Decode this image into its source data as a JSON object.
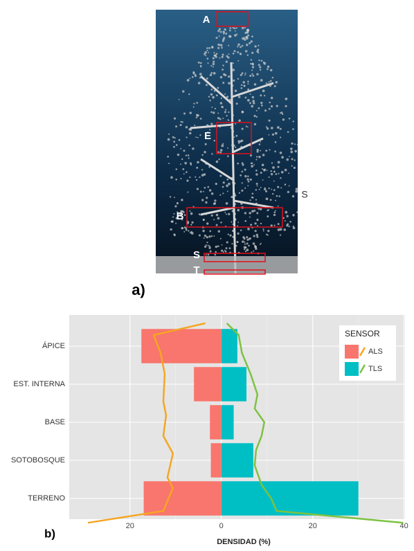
{
  "figure_a": {
    "labels": [
      "A",
      "E",
      "B",
      "S",
      "T"
    ],
    "side_mark": "S",
    "panel_label": "a)"
  },
  "chart_data": {
    "type": "bar",
    "panel_label": "b)",
    "xlabel": "DENSIDAD (%)",
    "categories": [
      "ÁPICE",
      "EST. INTERNA",
      "BASE",
      "SOTOBOSQUE",
      "TERRENO"
    ],
    "series": [
      {
        "name": "ALS",
        "color": "#f8766d",
        "line_color": "#f5a623",
        "values": [
          -17.5,
          -6,
          -2.5,
          -2.3,
          -17
        ],
        "profile": {
          "x": [
            -3.5,
            -14.8,
            -13.3,
            -12.4,
            -12.7,
            -12.1,
            -12.7,
            -10.6,
            -11.8,
            -10.6,
            -12.7,
            -29.2
          ],
          "y": [
            -0.6,
            -0.29,
            0.18,
            0.73,
            1.45,
            1.82,
            2.36,
            2.82,
            3.45,
            3.73,
            4.33,
            4.64
          ]
        }
      },
      {
        "name": "TLS",
        "color": "#00bfc4",
        "line_color": "#7dc242",
        "values": [
          3.5,
          5.5,
          2.7,
          7,
          30
        ],
        "profile": {
          "x": [
            1.2,
            3.8,
            4.5,
            6.4,
            7.9,
            7.3,
            9.4,
            8.8,
            7.6,
            7.3,
            8.8,
            10.9,
            12.1,
            39.8
          ],
          "y": [
            -0.6,
            -0.29,
            0.18,
            0.73,
            1.27,
            1.64,
            2.0,
            2.36,
            2.73,
            3.13,
            3.64,
            4.0,
            4.33,
            4.64
          ]
        }
      }
    ],
    "xlim": [
      -33.3,
      40.2
    ],
    "xticks": [
      {
        "value": -20,
        "label": "20"
      },
      0,
      20,
      40
    ],
    "grid": true,
    "legend_title": "SENSOR",
    "legend_position": "top-right"
  }
}
